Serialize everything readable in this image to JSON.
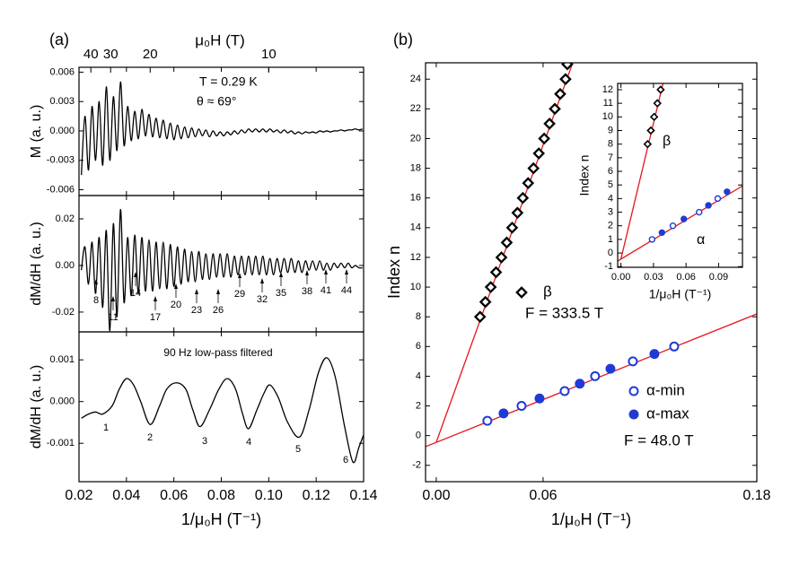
{
  "chart_data": [
    {
      "type": "line",
      "label": "(a)",
      "ylabel": "M (a. u.)",
      "x2label": "μ₀H (T)",
      "x2ticks": [
        40,
        30,
        20,
        10
      ],
      "annotations": [
        "T = 0.29 K",
        "θ ≈ 69°"
      ],
      "color": "#000000",
      "xlim": [
        0.02,
        0.14
      ],
      "ylim": [
        -0.0066,
        0.0065
      ],
      "yticks": [
        -0.006,
        -0.003,
        {
          "value": 0,
          "label": "0.000"
        },
        0.003,
        0.006
      ],
      "x": [
        0.021,
        0.0225,
        0.024,
        0.0255,
        0.027,
        0.0285,
        0.03,
        0.0315,
        0.033,
        0.0345,
        0.036,
        0.0375,
        0.039,
        0.0405,
        0.042,
        0.0435,
        0.045,
        0.0465,
        0.048,
        0.0495,
        0.051,
        0.0525,
        0.054,
        0.0555,
        0.057,
        0.0585,
        0.06,
        0.0615,
        0.063,
        0.0645,
        0.066,
        0.0675,
        0.069,
        0.0705,
        0.072,
        0.0735,
        0.075,
        0.0765,
        0.078,
        0.0795,
        0.081,
        0.0825,
        0.084,
        0.0855,
        0.087,
        0.0885,
        0.09,
        0.0915,
        0.093,
        0.0945,
        0.096,
        0.0975,
        0.099,
        0.1005,
        0.102,
        0.1035,
        0.105,
        0.1065,
        0.108,
        0.1095,
        0.111,
        0.1125,
        0.114,
        0.1155,
        0.117,
        0.1185,
        0.12,
        0.1215,
        0.123,
        0.1245,
        0.126,
        0.1275,
        0.129,
        0.1305,
        0.132,
        0.1335,
        0.135,
        0.1365,
        0.138,
        0.1395
      ],
      "values": [
        -0.0045,
        0.0015,
        -0.004,
        0.0025,
        -0.003,
        0.003,
        -0.0035,
        0.0045,
        -0.003,
        0.0035,
        -0.002,
        0.005,
        -0.0015,
        0.0025,
        -0.001,
        0.002,
        -0.0008,
        0.0022,
        -0.0005,
        0.0017,
        -0.0006,
        0.0013,
        -0.0007,
        0.0011,
        -0.0008,
        0.0008,
        -0.0009,
        0.0006,
        -0.0008,
        0.0004,
        -0.0007,
        0.0003,
        -0.0006,
        0.0002,
        -0.0005,
        0.0001,
        -0.0006,
        0,
        -0.0005,
        -0.0001,
        -0.0005,
        -0.0001,
        -0.0004,
        0,
        -0.0003,
        0.0001,
        -0.0002,
        0.0002,
        -0.0001,
        0.0002,
        -0.0001,
        0.0002,
        -0.0001,
        0.0002,
        -0.0001,
        0.0001,
        -0.0002,
        0.0001,
        -0.0002,
        0,
        -0.0003,
        -0.0001,
        -0.0003,
        -0.0001,
        -0.0002,
        -0.0001,
        -0.0002,
        0,
        -0.0001,
        0,
        -0.0001,
        0,
        0,
        0.0001,
        0,
        0.0001,
        0.0001,
        0.0002,
        0.0001,
        0.0002
      ]
    },
    {
      "type": "line",
      "ylabel": "dM/dH (a. u.)",
      "annotations": [
        "8",
        "11",
        "14",
        "17",
        "20",
        "23",
        "26",
        "29",
        "32",
        "35",
        "38",
        "41",
        "44"
      ],
      "color": "#000000",
      "xlim": [
        0.02,
        0.14
      ],
      "ylim": [
        -0.0285,
        0.03
      ],
      "yticks": [
        -0.02,
        {
          "value": 0,
          "label": "0.00"
        },
        0.02
      ],
      "x": [
        0.021,
        0.0225,
        0.024,
        0.0255,
        0.027,
        0.0285,
        0.03,
        0.0315,
        0.033,
        0.0345,
        0.036,
        0.0375,
        0.039,
        0.0405,
        0.042,
        0.0435,
        0.045,
        0.0465,
        0.048,
        0.0495,
        0.051,
        0.0525,
        0.054,
        0.0555,
        0.057,
        0.0585,
        0.06,
        0.0615,
        0.063,
        0.0645,
        0.066,
        0.0675,
        0.069,
        0.0705,
        0.072,
        0.0735,
        0.075,
        0.0765,
        0.078,
        0.0795,
        0.081,
        0.0825,
        0.084,
        0.0855,
        0.087,
        0.0885,
        0.09,
        0.0915,
        0.093,
        0.0945,
        0.096,
        0.0975,
        0.099,
        0.1005,
        0.102,
        0.1035,
        0.105,
        0.1065,
        0.108,
        0.1095,
        0.111,
        0.1125,
        0.114,
        0.1155,
        0.117,
        0.1185,
        0.12,
        0.1215,
        0.123,
        0.1245,
        0.126,
        0.1275,
        0.129,
        0.1305,
        0.132,
        0.1335,
        0.135,
        0.1365,
        0.138,
        0.1395
      ],
      "values": [
        -0.002,
        0.008,
        -0.008,
        0.01,
        -0.012,
        0.012,
        -0.018,
        0.015,
        -0.028,
        0.018,
        -0.022,
        0.024,
        -0.016,
        0.012,
        -0.013,
        0.013,
        -0.012,
        0.012,
        -0.011,
        0.011,
        -0.011,
        0.01,
        -0.01,
        0.01,
        -0.01,
        0.009,
        -0.009,
        0.008,
        -0.008,
        0.007,
        -0.007,
        0.006,
        -0.007,
        0.006,
        -0.006,
        0.005,
        -0.006,
        0.005,
        -0.005,
        0.005,
        -0.005,
        0.005,
        -0.005,
        0.004,
        -0.004,
        0.004,
        -0.004,
        0.004,
        -0.004,
        0.004,
        -0.004,
        0.004,
        -0.004,
        0.003,
        -0.004,
        0.003,
        -0.003,
        0.003,
        -0.003,
        0.003,
        -0.003,
        0.002,
        -0.003,
        0.002,
        -0.002,
        0.002,
        -0.002,
        0.002,
        -0.002,
        0.001,
        -0.002,
        0.001,
        -0.001,
        0.001,
        -0.001,
        0.001,
        -0.001,
        0,
        -0.001,
        -0.001
      ]
    },
    {
      "type": "line",
      "title": "90 Hz low-pass filtered",
      "ylabel": "dM/dH (a. u.)",
      "xlabel": "1/μ₀H (T⁻¹)",
      "annotations": [
        "1",
        "2",
        "3",
        "4",
        "5",
        "6"
      ],
      "color": "#000000",
      "xlim": [
        0.02,
        0.14
      ],
      "ylim": [
        -0.00192,
        0.00167
      ],
      "yticks": [
        -0.001,
        {
          "value": 0,
          "label": "0.000"
        },
        0.001
      ],
      "xticks": [
        0.02,
        0.04,
        0.06,
        0.08,
        {
          "value": 0.1,
          "label": "0.10"
        },
        0.12,
        0.14
      ],
      "x": [
        0.021,
        0.024,
        0.027,
        0.03,
        0.034,
        0.037,
        0.04,
        0.043,
        0.046,
        0.05,
        0.054,
        0.057,
        0.061,
        0.065,
        0.068,
        0.071,
        0.075,
        0.079,
        0.0825,
        0.086,
        0.089,
        0.0915,
        0.095,
        0.098,
        0.1005,
        0.104,
        0.108,
        0.113,
        0.117,
        0.121,
        0.1245,
        0.128,
        0.132,
        0.1355,
        0.138,
        0.14
      ],
      "values": [
        -0.0004,
        -0.0003,
        -0.00025,
        -0.0003,
        -0.0001,
        0.0003,
        0.00055,
        0.0004,
        0,
        -0.00055,
        -0.0001,
        0.0003,
        0.00045,
        0.0003,
        -0.0002,
        -0.0006,
        -0.0002,
        0.0003,
        0.00055,
        0.0003,
        -0.0003,
        -0.00065,
        -0.0002,
        0.0002,
        0.0004,
        0.0001,
        -0.0005,
        -0.00085,
        -0.0002,
        0.0007,
        0.00105,
        0.0006,
        -0.0006,
        -0.00145,
        -0.0011,
        -0.0008
      ]
    },
    {
      "type": "scatter",
      "label": "(b)",
      "ylabel": "Index n",
      "xlabel": "1/μ₀H (T⁻¹)",
      "annotations": [
        "F = 333.5 T",
        "F = 48.0 T"
      ],
      "xlim": [
        -0.006,
        0.18
      ],
      "ylim": [
        -3.1,
        25.1
      ],
      "xticks": [
        {
          "value": 0,
          "label": "0.00"
        },
        0.06,
        0.18
      ],
      "yticks": [
        -2,
        0,
        2,
        4,
        6,
        8,
        10,
        12,
        14,
        16,
        18,
        20,
        22,
        24
      ],
      "series": [
        {
          "name": "β",
          "color": "#000000",
          "marker": "diamond",
          "filled": false,
          "x": [
            0.0246,
            0.0276,
            0.0306,
            0.0336,
            0.0366,
            0.0396,
            0.0426,
            0.0456,
            0.0486,
            0.0516,
            0.0546,
            0.0576,
            0.0606,
            0.0636,
            0.0666,
            0.0696,
            0.0726,
            0.0736
          ],
          "values": [
            8,
            9,
            10,
            11,
            12,
            13,
            14,
            15,
            16,
            17,
            18,
            19,
            20,
            21,
            22,
            23,
            24,
            25
          ]
        },
        {
          "name": "α-min",
          "color": "#1f3bd6",
          "marker": "circle",
          "filled": false,
          "x": [
            0.0287,
            0.0479,
            0.0721,
            0.0892,
            0.1104,
            0.1336
          ],
          "values": [
            1,
            2,
            3,
            4,
            5,
            6
          ]
        },
        {
          "name": "α-max",
          "color": "#1f3bd6",
          "marker": "circle",
          "filled": true,
          "x": [
            0.0378,
            0.058,
            0.0806,
            0.0978,
            0.1225
          ],
          "values": [
            1.5,
            2.5,
            3.5,
            4.5,
            5.5
          ]
        },
        {
          "color": "#e8141c",
          "style": "line",
          "x": [
            0,
            0.0765
          ],
          "values": [
            -0.45,
            25.06
          ]
        },
        {
          "color": "#e8141c",
          "style": "line",
          "x": [
            -0.006,
            0.18
          ],
          "values": [
            -0.74,
            8.19
          ]
        }
      ]
    },
    {
      "type": "scatter",
      "ylabel": "Index n",
      "xlabel": "1/μ₀H (T⁻¹)",
      "annotations": [
        "β",
        "α"
      ],
      "xlim": [
        -0.003,
        0.112
      ],
      "ylim": [
        -1.05,
        12.46
      ],
      "xticks": [
        {
          "value": 0,
          "label": "0.00"
        },
        0.03,
        0.06,
        0.09
      ],
      "yticks": [
        -1,
        0,
        1,
        2,
        3,
        4,
        5,
        6,
        7,
        8,
        9,
        10,
        11,
        12
      ],
      "series": [
        {
          "color": "#000000",
          "marker": "diamond",
          "filled": false,
          "x": [
            0.0246,
            0.0276,
            0.0306,
            0.0336,
            0.0366
          ],
          "values": [
            8,
            9,
            10,
            11,
            12
          ]
        },
        {
          "color": "#1f3bd6",
          "marker": "circle",
          "filled": false,
          "x": [
            0.0287,
            0.0479,
            0.0721,
            0.0892
          ],
          "values": [
            1,
            2,
            3,
            4
          ]
        },
        {
          "color": "#1f3bd6",
          "marker": "circle",
          "filled": true,
          "x": [
            0.0378,
            0.058,
            0.0806,
            0.0978
          ],
          "values": [
            1.5,
            2.5,
            3.5,
            4.5
          ]
        },
        {
          "color": "#e8141c",
          "style": "line",
          "x": [
            0,
            0.0392
          ],
          "values": [
            -0.45,
            12.6
          ]
        },
        {
          "color": "#e8141c",
          "style": "line",
          "x": [
            -0.003,
            0.112
          ],
          "values": [
            -0.59,
            4.93
          ]
        }
      ]
    }
  ]
}
